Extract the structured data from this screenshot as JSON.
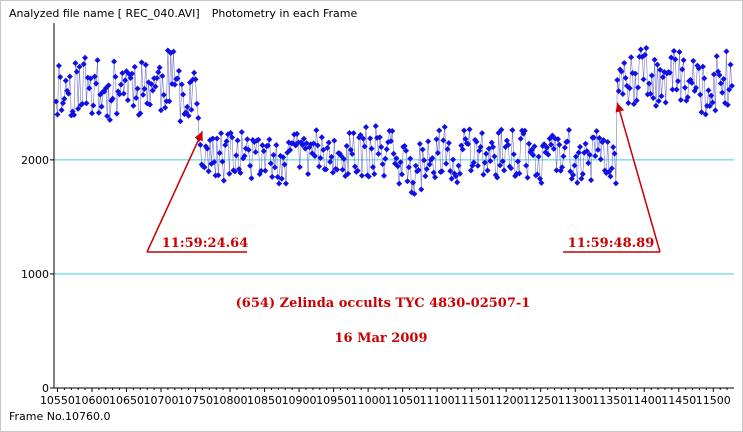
{
  "header": {
    "file_label": "Analyzed file name [ REC_040.AVI]",
    "mode_label": "Photometry in each Frame"
  },
  "footer": {
    "frame_readout": "Frame No.10760.0"
  },
  "colors": {
    "points": "#1010e6",
    "connector": "#7777cc",
    "gridline": "#3fd3d8",
    "annotation": "#cc0000"
  },
  "chart_data": {
    "type": "scatter",
    "title": "",
    "xlabel": "",
    "ylabel": "",
    "xlim": [
      10545,
      11530
    ],
    "ylim": [
      0,
      3200
    ],
    "x_ticks": [
      10550,
      10600,
      10650,
      10700,
      10750,
      10800,
      10850,
      10900,
      10950,
      11000,
      11050,
      11100,
      11150,
      11200,
      11250,
      11300,
      11350,
      11400,
      11450,
      11500
    ],
    "x_tick_labels": [
      "10550",
      "10600",
      "10650",
      "10700",
      "10750",
      "10800",
      "10850",
      "10900",
      "10950",
      "11000",
      "11050",
      "11100",
      "11150",
      "11200",
      "11250",
      "11300",
      "11350",
      "11400",
      "11450",
      "11500"
    ],
    "y_ticks": [
      0,
      1000,
      2000
    ],
    "y_tick_labels": [
      "0",
      "1000",
      "2000"
    ],
    "gridlines_y": [
      1000,
      2000
    ],
    "segments": [
      {
        "x_start": 10548,
        "x_end": 10755,
        "baseline": 2650,
        "amp": 330,
        "seed": 11
      },
      {
        "x_start": 10755,
        "x_end": 11361,
        "baseline": 2030,
        "amp": 270,
        "seed": 29
      },
      {
        "x_start": 11361,
        "x_end": 11528,
        "baseline": 2700,
        "amp": 290,
        "seed": 47
      }
    ],
    "annotations": [
      {
        "text": "11:59:24.64",
        "frame": 10760,
        "value": 2250
      },
      {
        "text": "11:59:48.89",
        "frame": 11361,
        "value": 2500
      }
    ],
    "caption_line1": "(654) Zelinda occults TYC 4830-02507-1",
    "caption_line2": "16 Mar 2009"
  }
}
